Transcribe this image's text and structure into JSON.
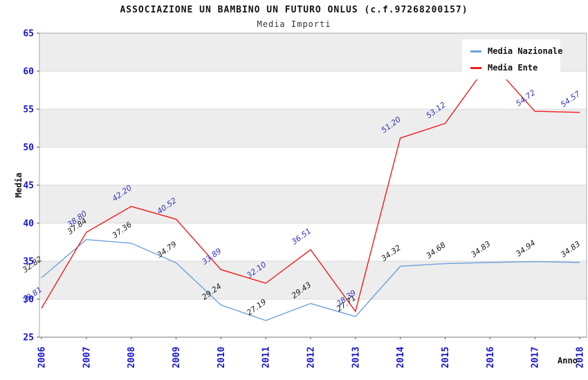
{
  "title": "ASSOCIAZIONE UN BAMBINO UN FUTURO ONLUS (c.f.97268200157)",
  "subtitle": "Media Importi",
  "chart_data": {
    "type": "line",
    "x": [
      2006,
      2007,
      2008,
      2009,
      2010,
      2011,
      2012,
      2013,
      2014,
      2015,
      2016,
      2017,
      2018
    ],
    "xlabel": "Anno",
    "ylabel": "Media",
    "ylim": [
      25,
      65
    ],
    "yticks": [
      25,
      30,
      35,
      40,
      45,
      50,
      55,
      60,
      65
    ],
    "grid": "horizontal, alternating gray bands from top",
    "legend_position": "top-right",
    "series": [
      {
        "name": "Media Nazionale",
        "color": "#6CA2DC",
        "label_color": "#1A1A1A",
        "values": [
          32.82,
          37.84,
          37.36,
          34.79,
          29.24,
          27.19,
          29.43,
          27.71,
          34.32,
          34.68,
          34.83,
          34.94,
          34.83
        ]
      },
      {
        "name": "Media Ente",
        "color": "#EE1C1C",
        "label_color": "#3333BB",
        "values": [
          28.81,
          38.8,
          42.2,
          40.52,
          33.89,
          32.1,
          36.51,
          28.39,
          51.2,
          53.12,
          61.3,
          54.72,
          54.57
        ],
        "label_hidden_for_x": [
          2016
        ],
        "note_2016": "value estimated from line peak; its label is hidden behind the legend box"
      }
    ]
  },
  "colors": {
    "band_gray": "#EDEDED",
    "gridline": "#D9D9D9",
    "plot_border": "#AAAAAA",
    "axis_tick": "#555555",
    "tick_label_blue": "#1414CC"
  }
}
